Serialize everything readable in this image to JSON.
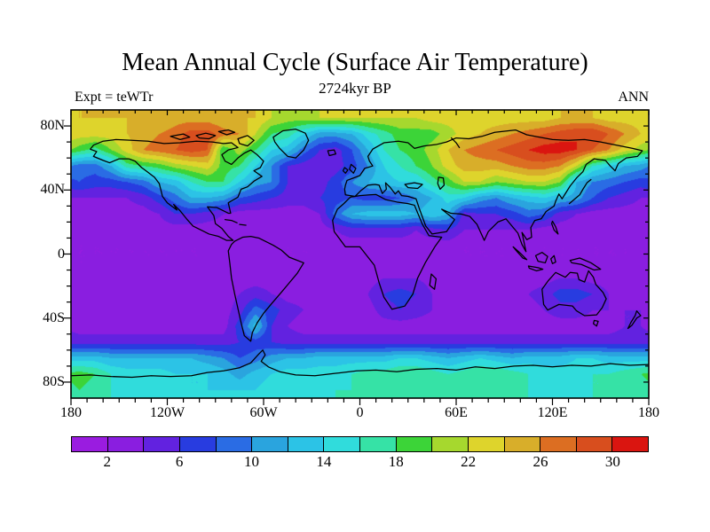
{
  "chart_data": {
    "type": "heatmap",
    "title": "Mean Annual Cycle (Surface Air Temperature)",
    "subtitle": "2724kyr BP",
    "annotations": {
      "top_left": "Expt = teWTr",
      "top_right": "ANN"
    },
    "projection": "equirectangular",
    "axes": {
      "lon": {
        "min": -180,
        "max": 180,
        "minor_step": 10,
        "major_step": 60,
        "labels": [
          {
            "text": "180",
            "deg": -180
          },
          {
            "text": "120W",
            "deg": -120
          },
          {
            "text": "60W",
            "deg": -60
          },
          {
            "text": "0",
            "deg": 0
          },
          {
            "text": "60E",
            "deg": 60
          },
          {
            "text": "120E",
            "deg": 120
          },
          {
            "text": "180",
            "deg": 180
          }
        ]
      },
      "lat": {
        "min": -90,
        "max": 90,
        "minor_step": 10,
        "major_step": 40,
        "labels": [
          {
            "text": "80N",
            "deg": 80
          },
          {
            "text": "40N",
            "deg": 40
          },
          {
            "text": "0",
            "deg": 0
          },
          {
            "text": "40S",
            "deg": -40
          },
          {
            "text": "80S",
            "deg": -80
          }
        ]
      }
    },
    "colorbar": {
      "level_min": 0,
      "level_step": 2,
      "colors": [
        "#9a1ce0",
        "#8a1ee0",
        "#6222e0",
        "#283ce0",
        "#2a6ce4",
        "#2aa4de",
        "#2cc3e6",
        "#30dcdc",
        "#36e2a6",
        "#3cd438",
        "#a6d82e",
        "#ded42c",
        "#d8ae2a",
        "#dc6e22",
        "#d84e1e",
        "#da1510"
      ],
      "labels": [
        {
          "text": "2",
          "value": 2
        },
        {
          "text": "6",
          "value": 6
        },
        {
          "text": "10",
          "value": 10
        },
        {
          "text": "14",
          "value": 14
        },
        {
          "text": "18",
          "value": 18
        },
        {
          "text": "22",
          "value": 22
        },
        {
          "text": "26",
          "value": 26
        },
        {
          "text": "30",
          "value": 30
        }
      ]
    },
    "grid": {
      "lon_start": -175,
      "lon_step": 10,
      "lat_start": 85,
      "lat_step": -10,
      "values": [
        [
          24,
          24,
          24,
          24,
          24,
          24,
          25,
          25,
          25,
          24,
          24,
          24,
          22,
          21,
          21,
          22,
          22,
          22,
          22,
          22,
          22,
          22,
          23,
          23,
          23,
          23,
          23,
          23,
          23,
          23,
          24,
          24,
          24,
          23,
          23,
          23
        ],
        [
          23,
          23,
          23,
          24,
          25,
          26,
          27,
          29,
          29,
          27,
          26,
          22,
          18,
          17,
          14,
          11,
          11,
          12,
          15,
          17,
          19,
          19,
          19,
          21,
          23,
          24,
          25,
          26,
          27,
          28,
          29,
          30,
          30,
          28,
          26,
          24
        ],
        [
          19,
          17,
          20,
          23,
          26,
          27,
          28,
          29,
          28,
          18,
          21,
          18,
          14,
          13,
          9,
          6,
          5,
          8,
          12,
          16,
          18,
          19,
          21,
          24,
          26,
          27,
          28,
          29,
          30,
          31,
          31,
          30,
          28,
          26,
          23,
          21
        ],
        [
          9,
          9,
          12,
          17,
          18,
          19,
          21,
          22,
          23,
          19,
          18,
          14,
          10,
          6,
          5,
          4,
          5,
          7,
          10,
          14,
          16,
          18,
          20,
          23,
          25,
          25,
          25,
          26,
          27,
          27,
          26,
          22,
          16,
          14,
          12,
          11
        ],
        [
          8,
          7,
          7,
          8,
          9,
          12,
          13,
          16,
          18,
          18,
          14,
          11,
          10,
          6,
          5,
          5,
          7,
          10,
          12,
          13,
          14,
          14,
          17,
          19,
          22,
          22,
          20,
          21,
          22,
          22,
          20,
          12,
          10,
          9,
          8,
          7
        ],
        [
          4,
          4,
          4,
          4,
          5,
          7,
          9,
          12,
          12,
          11,
          8,
          7,
          6,
          5,
          5,
          6,
          7,
          8,
          7,
          7,
          8,
          10,
          12,
          15,
          14,
          11,
          10,
          12,
          13,
          14,
          12,
          11,
          8,
          6,
          5,
          4
        ],
        [
          3,
          3,
          3,
          3,
          3,
          4,
          6,
          6,
          5,
          4,
          3,
          3,
          3,
          3,
          3,
          4,
          9,
          12,
          13,
          13,
          13,
          12,
          14,
          12,
          5,
          6,
          6,
          7,
          9,
          8,
          5,
          4,
          3,
          3,
          3,
          3
        ],
        [
          3,
          3,
          3,
          3,
          3,
          3,
          3,
          3,
          3,
          3,
          3,
          3,
          3,
          3,
          3,
          3,
          4,
          5,
          5,
          5,
          5,
          4,
          5,
          6,
          4,
          4,
          4,
          4,
          4,
          3,
          3,
          3,
          3,
          3,
          3,
          3
        ],
        [
          2,
          2,
          2,
          2,
          2,
          2,
          2,
          2,
          2,
          3,
          3,
          3,
          2,
          2,
          2,
          2,
          3,
          3,
          3,
          3,
          3,
          3,
          3,
          3,
          2,
          2,
          2,
          2,
          2,
          2,
          2,
          2,
          2,
          2,
          2,
          2
        ],
        [
          2,
          2,
          2,
          2,
          2,
          2,
          2,
          2,
          2,
          2,
          3,
          3,
          3,
          2,
          2,
          2,
          2,
          3,
          3,
          3,
          3,
          3,
          3,
          2,
          2,
          2,
          2,
          2,
          2,
          2,
          2,
          2,
          2,
          2,
          2,
          2
        ],
        [
          3,
          3,
          3,
          3,
          3,
          3,
          3,
          3,
          3,
          3,
          3,
          3,
          3,
          3,
          3,
          3,
          3,
          3,
          3,
          4,
          4,
          4,
          3,
          3,
          3,
          3,
          3,
          3,
          3,
          3,
          4,
          4,
          3,
          3,
          3,
          3
        ],
        [
          3,
          3,
          3,
          3,
          3,
          3,
          3,
          3,
          3,
          3,
          4,
          5,
          4,
          3,
          3,
          3,
          3,
          3,
          4,
          6,
          7,
          6,
          4,
          3,
          3,
          3,
          3,
          3,
          4,
          5,
          7,
          7,
          6,
          4,
          3,
          3
        ],
        [
          3,
          3,
          3,
          3,
          3,
          3,
          3,
          3,
          3,
          3,
          5,
          9,
          7,
          5,
          4,
          3,
          3,
          3,
          3,
          5,
          6,
          5,
          4,
          3,
          3,
          3,
          3,
          3,
          3,
          4,
          5,
          5,
          4,
          4,
          4,
          4
        ],
        [
          3,
          3,
          3,
          3,
          3,
          3,
          3,
          3,
          3,
          3,
          7,
          13,
          6,
          4,
          3,
          3,
          3,
          3,
          3,
          3,
          3,
          3,
          3,
          3,
          3,
          3,
          3,
          3,
          3,
          3,
          3,
          3,
          3,
          3,
          4,
          4
        ],
        [
          5,
          5,
          5,
          5,
          5,
          5,
          5,
          5,
          5,
          5,
          6,
          7,
          6,
          5,
          5,
          5,
          5,
          5,
          5,
          5,
          5,
          5,
          5,
          5,
          5,
          5,
          5,
          5,
          5,
          5,
          5,
          5,
          5,
          5,
          5,
          5
        ],
        [
          13,
          13,
          12,
          12,
          12,
          12,
          12,
          12,
          11,
          10,
          8,
          9,
          11,
          12,
          12,
          13,
          13,
          13,
          13,
          13,
          14,
          14,
          13,
          12,
          13,
          14,
          13,
          12,
          13,
          13,
          13,
          14,
          14,
          13,
          13,
          13
        ],
        [
          19,
          18,
          16,
          15,
          15,
          15,
          14,
          14,
          14,
          13,
          11,
          13,
          14,
          15,
          15,
          15,
          15,
          16,
          17,
          17,
          18,
          18,
          17,
          16,
          17,
          18,
          18,
          17,
          16,
          15,
          15,
          15,
          16,
          16,
          17,
          18
        ],
        [
          18,
          17,
          16,
          15,
          15,
          15,
          15,
          14,
          14,
          14,
          14,
          14,
          15,
          15,
          15,
          15,
          16,
          16,
          17,
          17,
          17,
          17,
          16,
          16,
          16,
          17,
          17,
          16,
          16,
          15,
          15,
          15,
          16,
          16,
          17,
          17
        ]
      ]
    }
  }
}
